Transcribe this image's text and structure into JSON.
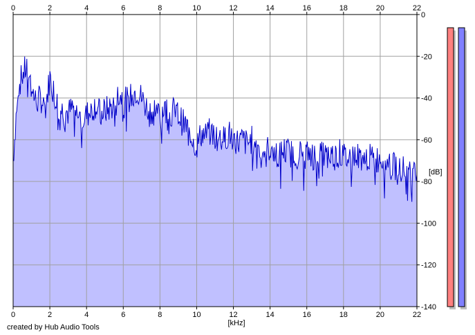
{
  "chart_data": {
    "type": "area",
    "title": "",
    "xlabel": "[kHz]",
    "ylabel": "[dB]",
    "xlim": [
      0,
      22
    ],
    "ylim": [
      -140,
      0
    ],
    "x_ticks": [
      0,
      2,
      4,
      6,
      8,
      10,
      12,
      14,
      16,
      18,
      20,
      22
    ],
    "y_ticks": [
      0,
      -20,
      -40,
      -60,
      -80,
      -100,
      -120,
      -140
    ],
    "grid": true,
    "series": [
      {
        "x": [
          0,
          0.25,
          0.5,
          0.75,
          1,
          1.25,
          1.5,
          1.75,
          2,
          2.25,
          2.5,
          2.75,
          3,
          3.25,
          3.5,
          3.75,
          4,
          4.25,
          4.5,
          4.75,
          5,
          5.25,
          5.5,
          5.75,
          6,
          6.25,
          6.5,
          6.75,
          7,
          7.25,
          7.5,
          7.75,
          8,
          8.25,
          8.5,
          8.75,
          9,
          9.25,
          9.5,
          9.75,
          10,
          10.25,
          10.5,
          10.75,
          11,
          11.25,
          11.5,
          11.75,
          12,
          12.25,
          12.5,
          12.75,
          13,
          13.25,
          13.5,
          13.75,
          14,
          14.25,
          14.5,
          14.75,
          15,
          15.25,
          15.5,
          15.75,
          16,
          16.25,
          16.5,
          16.75,
          17,
          17.25,
          17.5,
          17.75,
          18,
          18.25,
          18.5,
          18.75,
          19,
          19.25,
          19.5,
          19.75,
          20,
          20.25,
          20.5,
          20.75,
          21,
          21.25,
          21.5,
          21.75,
          22
        ],
        "values": [
          -70,
          -36,
          -29,
          -25,
          -35,
          -42,
          -40,
          -45,
          -30,
          -38,
          -45,
          -46,
          -47,
          -45,
          -48,
          -50,
          -48,
          -46,
          -43,
          -48,
          -46,
          -45,
          -43,
          -38,
          -40,
          -42,
          -38,
          -36,
          -40,
          -44,
          -46,
          -45,
          -48,
          -44,
          -48,
          -46,
          -48,
          -52,
          -54,
          -58,
          -63,
          -57,
          -58,
          -56,
          -58,
          -59,
          -60,
          -57,
          -59,
          -61,
          -60,
          -62,
          -60,
          -61,
          -66,
          -65,
          -64,
          -66,
          -67,
          -65,
          -66,
          -67,
          -66,
          -67,
          -66,
          -68,
          -67,
          -66,
          -68,
          -67,
          -68,
          -66,
          -68,
          -69,
          -67,
          -68,
          -68,
          -68,
          -69,
          -70,
          -68,
          -70,
          -72,
          -73,
          -72,
          -74,
          -76,
          -78,
          -77
        ]
      }
    ],
    "level_meters": [
      {
        "color": "#ff8080",
        "level": -15
      },
      {
        "color": "#8080ff",
        "level": -15
      }
    ]
  },
  "credit": "created by Hub Audio Tools",
  "colors": {
    "fill": "#c0c0ff",
    "line": "#0000c8",
    "grid": "#a0a0a0",
    "axis": "#000000",
    "meter_left": "#ff8080",
    "meter_right": "#8080ff"
  }
}
